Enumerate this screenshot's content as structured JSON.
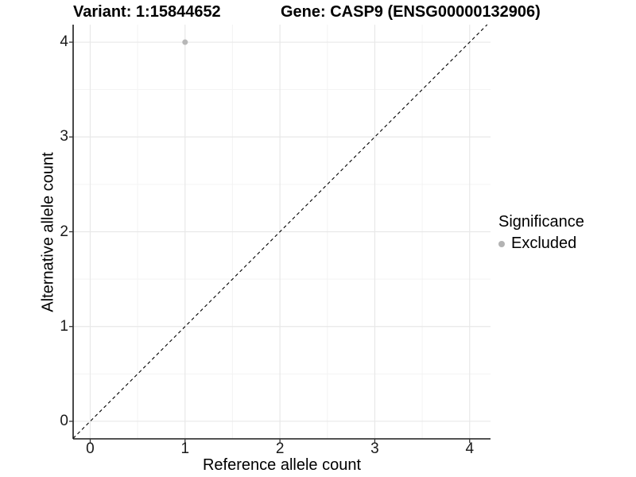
{
  "chart_data": {
    "type": "scatter",
    "title_left": "Variant: 1:15844652",
    "title_right": "Gene: CASP9 (ENSG00000132906)",
    "xlabel": "Reference allele count",
    "ylabel": "Alternative allele count",
    "xlim": [
      -0.18,
      4.22
    ],
    "ylim": [
      -0.185,
      4.185
    ],
    "x_ticks": [
      0,
      1,
      2,
      3,
      4
    ],
    "y_ticks": [
      0,
      1,
      2,
      3,
      4
    ],
    "grid": {
      "major": true,
      "minor": true
    },
    "points": [
      {
        "x": 1,
        "y": 4,
        "significance": "Excluded"
      }
    ],
    "reference_line": {
      "style": "dashed",
      "from": [
        -0.18,
        -0.18
      ],
      "to": [
        4.185,
        4.185
      ]
    },
    "legend": {
      "title": "Significance",
      "position": "right",
      "items": [
        {
          "label": "Excluded",
          "color": "#b3b3b3",
          "marker": "circle"
        }
      ]
    }
  },
  "colors": {
    "background": "#ffffff",
    "axis": "#1a1a1a",
    "tick_mark": "#333333",
    "grid_major": "#e8e8e8",
    "grid_minor": "#f3f3f3",
    "point": "#b7b7b7",
    "reference_line": "#000000",
    "text": "#000000"
  }
}
